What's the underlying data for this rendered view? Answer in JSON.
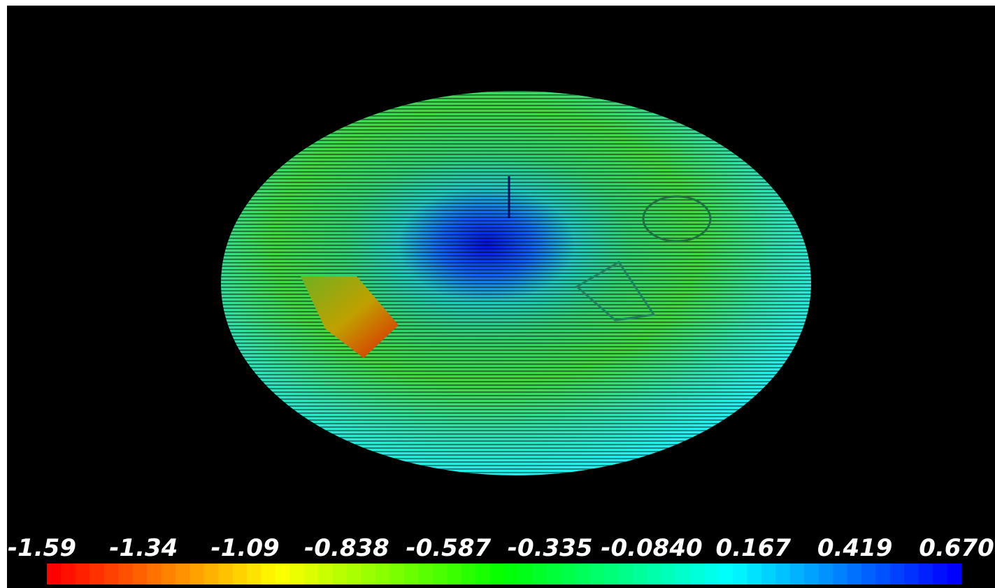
{
  "colorbar": {
    "labels": [
      "-1.59",
      "-1.34",
      "-1.09",
      "-0.838",
      "-0.587",
      "-0.335",
      "-0.0840",
      "0.167",
      "0.419",
      "0.670"
    ]
  }
}
